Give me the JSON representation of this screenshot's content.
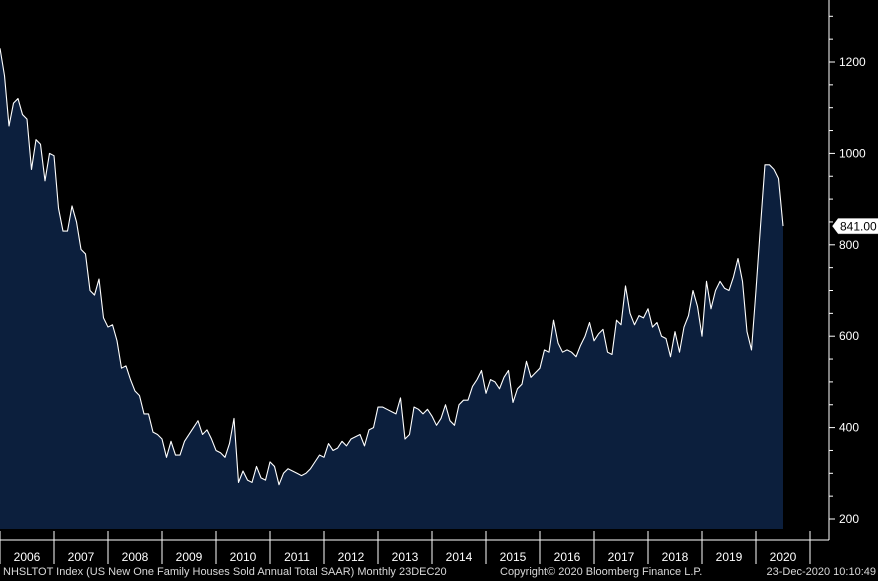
{
  "footer": {
    "left": "NHSLTOT Index (US New One Family Houses Sold Annual Total SAAR)  Monthly 23DEC20",
    "middle": "Copyright© 2020 Bloomberg Finance L.P.",
    "right": "23-Dec-2020 10:10:49"
  },
  "colors": {
    "background": "#000000",
    "fill": "#0c1f3d",
    "line": "#ffffff",
    "text": "#ffffff"
  },
  "chart_data": {
    "type": "area",
    "title": "",
    "xlabel": "",
    "ylabel": "",
    "y_axis_position": "right",
    "ylim": [
      180,
      1300
    ],
    "yticks": [
      200,
      400,
      600,
      800,
      1000,
      1200
    ],
    "x_categories": [
      "2006",
      "2007",
      "2008",
      "2009",
      "2010",
      "2011",
      "2012",
      "2013",
      "2014",
      "2015",
      "2016",
      "2017",
      "2018",
      "2019",
      "2020"
    ],
    "last_value_label": "841.00",
    "series": [
      {
        "start": "2006-01",
        "frequency": "monthly",
        "values": [
          1230,
          1170,
          1060,
          1110,
          1120,
          1085,
          1075,
          965,
          1030,
          1020,
          940,
          1000,
          995,
          880,
          830,
          830,
          885,
          850,
          790,
          780,
          700,
          690,
          725,
          640,
          620,
          625,
          590,
          530,
          535,
          505,
          480,
          470,
          430,
          430,
          390,
          385,
          375,
          335,
          370,
          340,
          340,
          370,
          385,
          400,
          415,
          385,
          395,
          375,
          350,
          345,
          335,
          365,
          420,
          280,
          305,
          285,
          280,
          315,
          290,
          285,
          325,
          315,
          275,
          300,
          310,
          305,
          300,
          295,
          300,
          310,
          325,
          340,
          335,
          365,
          350,
          355,
          370,
          360,
          375,
          380,
          385,
          360,
          395,
          400,
          445,
          445,
          440,
          435,
          430,
          465,
          375,
          385,
          445,
          440,
          430,
          440,
          425,
          405,
          420,
          450,
          415,
          405,
          450,
          460,
          460,
          490,
          505,
          525,
          475,
          505,
          500,
          485,
          510,
          525,
          455,
          485,
          495,
          545,
          510,
          520,
          530,
          570,
          565,
          635,
          585,
          565,
          570,
          565,
          555,
          580,
          600,
          630,
          590,
          605,
          615,
          565,
          560,
          635,
          625,
          710,
          650,
          625,
          645,
          640,
          660,
          620,
          630,
          600,
          595,
          555,
          610,
          565,
          620,
          645,
          700,
          665,
          600,
          720,
          660,
          700,
          720,
          705,
          700,
          730,
          770,
          720,
          610,
          570,
          700,
          840,
          975,
          975,
          965,
          945,
          841
        ]
      }
    ]
  }
}
